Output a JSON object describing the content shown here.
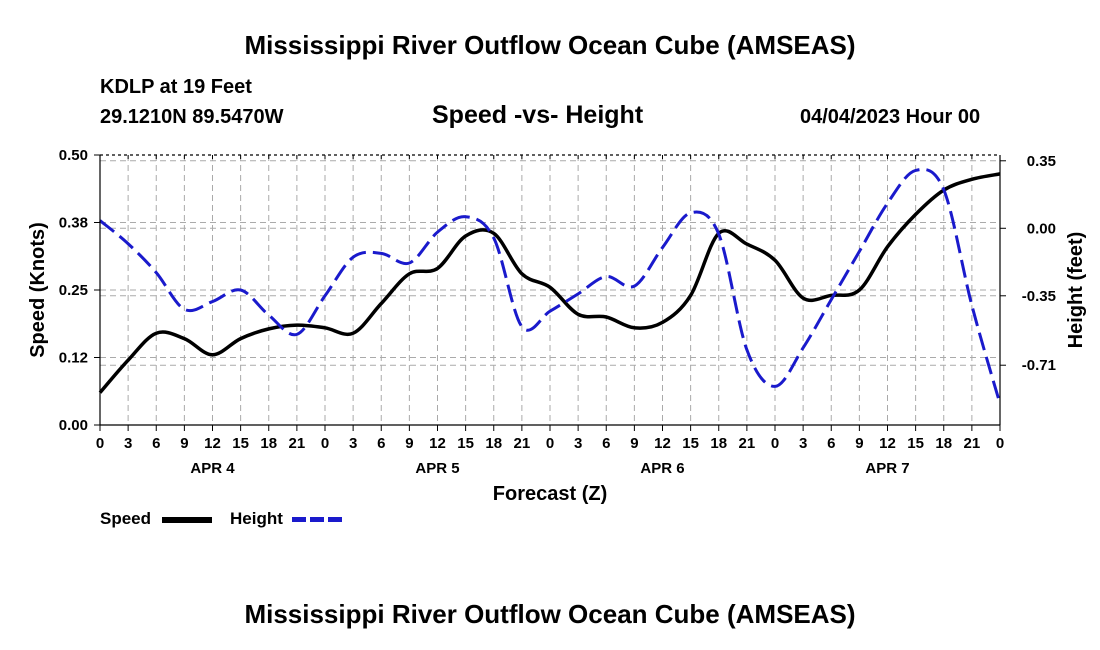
{
  "header": {
    "title_top": "Mississippi River Outflow Ocean Cube (AMSEAS)",
    "title_bottom": "Mississippi River Outflow Ocean Cube (AMSEAS)",
    "station": "KDLP at 19 Feet",
    "location": "29.1210N  89.5470W",
    "chart_title": "Speed -vs- Height",
    "datetime": "04/04/2023 Hour 00"
  },
  "chart_data": {
    "type": "line",
    "title": "Speed -vs- Height",
    "xlabel": "Forecast (Z)",
    "ylabel": "Speed (Knots)",
    "y2label": "Height (feet)",
    "ylim": [
      0,
      0.5
    ],
    "y2lim": [
      -1.02,
      0.38
    ],
    "xlim": [
      0,
      96
    ],
    "x_ticks": [
      0,
      3,
      6,
      9,
      12,
      15,
      18,
      21,
      24,
      27,
      30,
      33,
      36,
      39,
      42,
      45,
      48,
      51,
      54,
      57,
      60,
      63,
      66,
      69,
      72,
      75,
      78,
      81,
      84,
      87,
      90,
      93,
      96
    ],
    "x_tick_labels": [
      "0",
      "3",
      "6",
      "9",
      "12",
      "15",
      "18",
      "21",
      "0",
      "3",
      "6",
      "9",
      "12",
      "15",
      "18",
      "21",
      "0",
      "3",
      "6",
      "9",
      "12",
      "15",
      "18",
      "21",
      "0",
      "3",
      "6",
      "9",
      "12",
      "15",
      "18",
      "21",
      "0"
    ],
    "day_labels": [
      {
        "x": 12,
        "label": "APR 4"
      },
      {
        "x": 36,
        "label": "APR 5"
      },
      {
        "x": 60,
        "label": "APR 6"
      },
      {
        "x": 84,
        "label": "APR 7"
      }
    ],
    "y_ticks": [
      0.0,
      0.125,
      0.25,
      0.375,
      0.5
    ],
    "y_tick_labels": [
      "0.00",
      "0.12",
      "0.25",
      "0.38",
      "0.50"
    ],
    "y2_ticks": [
      0.35,
      0.0,
      -0.35,
      -0.71
    ],
    "y2_tick_labels": [
      "0.35",
      "0.00",
      "-0.35",
      "-0.71"
    ],
    "grid": true,
    "legend": "bottom-left",
    "series": [
      {
        "name": "Speed",
        "axis": "left",
        "color": "#000000",
        "style": "solid",
        "x": [
          0,
          3,
          6,
          9,
          12,
          15,
          18,
          21,
          24,
          27,
          30,
          33,
          36,
          39,
          42,
          45,
          48,
          51,
          54,
          57,
          60,
          63,
          66,
          69,
          72,
          75,
          78,
          81,
          84,
          87,
          90,
          93,
          96
        ],
        "values": [
          0.06,
          0.12,
          0.17,
          0.16,
          0.13,
          0.16,
          0.178,
          0.185,
          0.18,
          0.17,
          0.225,
          0.28,
          0.29,
          0.35,
          0.355,
          0.28,
          0.255,
          0.205,
          0.2,
          0.18,
          0.19,
          0.24,
          0.355,
          0.335,
          0.305,
          0.235,
          0.24,
          0.25,
          0.33,
          0.39,
          0.435,
          0.455,
          0.465
        ]
      },
      {
        "name": "Height",
        "axis": "right",
        "color": "#1a1acc",
        "style": "dashed",
        "x": [
          0,
          3,
          6,
          9,
          12,
          15,
          18,
          21,
          24,
          27,
          30,
          33,
          36,
          39,
          42,
          45,
          48,
          51,
          54,
          57,
          60,
          63,
          66,
          69,
          72,
          75,
          78,
          81,
          84,
          87,
          90,
          93,
          96
        ],
        "values": [
          0.04,
          -0.08,
          -0.23,
          -0.42,
          -0.38,
          -0.32,
          -0.45,
          -0.55,
          -0.35,
          -0.15,
          -0.13,
          -0.18,
          -0.02,
          0.06,
          -0.05,
          -0.51,
          -0.43,
          -0.34,
          -0.25,
          -0.3,
          -0.1,
          0.08,
          -0.03,
          -0.63,
          -0.82,
          -0.62,
          -0.37,
          -0.12,
          0.13,
          0.3,
          0.2,
          -0.4,
          -0.91
        ]
      }
    ]
  },
  "legend": {
    "speed_label": "Speed",
    "height_label": "Height"
  }
}
